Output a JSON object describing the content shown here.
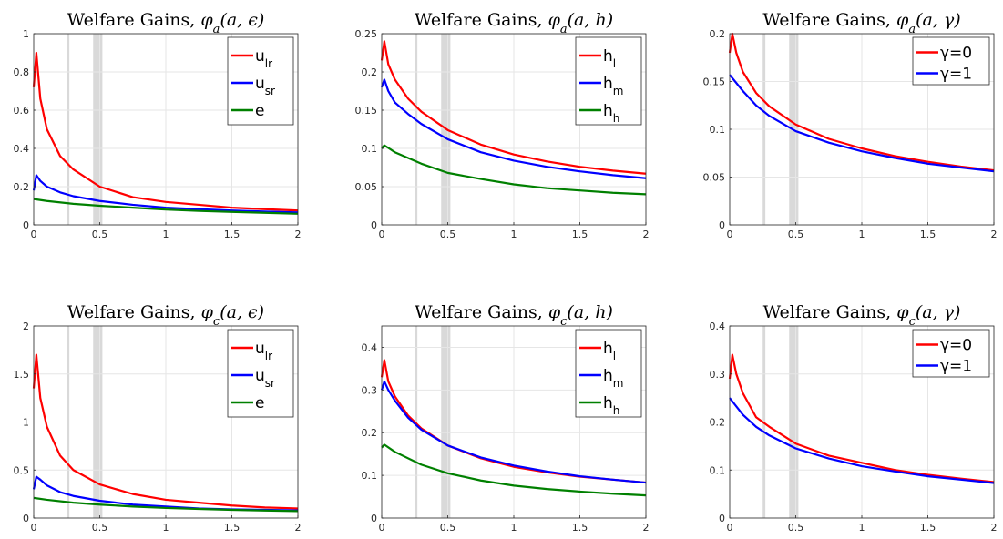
{
  "chart_data": [
    {
      "type": "line",
      "title_prefix": "Welfare Gains, ",
      "title_sym": "φ",
      "title_sub": "a",
      "title_args": "(a, ϵ)",
      "xlim": [
        0,
        2
      ],
      "ylim": [
        0,
        1
      ],
      "xticks": [
        0,
        0.5,
        1,
        1.5,
        2
      ],
      "xtick_labels": [
        "0",
        "0.5",
        "1",
        "1.5",
        "2"
      ],
      "yticks": [
        0,
        0.2,
        0.4,
        0.6,
        0.8,
        1
      ],
      "ytick_labels": [
        "0",
        "0.2",
        "0.4",
        "0.6",
        "0.8",
        "1"
      ],
      "grid": true,
      "legend_position": "top-right",
      "shaded_regions": [
        [
          0.25,
          0.27
        ],
        [
          0.45,
          0.52
        ]
      ],
      "series": [
        {
          "label": "u",
          "sub": "lr",
          "color": "#ff0000",
          "x": [
            0,
            0.02,
            0.05,
            0.1,
            0.2,
            0.3,
            0.5,
            0.75,
            1,
            1.25,
            1.5,
            1.75,
            2
          ],
          "y": [
            0.72,
            0.9,
            0.66,
            0.5,
            0.36,
            0.29,
            0.2,
            0.145,
            0.12,
            0.105,
            0.09,
            0.082,
            0.075
          ]
        },
        {
          "label": "u",
          "sub": "sr",
          "color": "#0000ff",
          "x": [
            0,
            0.02,
            0.05,
            0.1,
            0.2,
            0.3,
            0.5,
            0.75,
            1,
            1.25,
            1.5,
            1.75,
            2
          ],
          "y": [
            0.18,
            0.26,
            0.23,
            0.2,
            0.17,
            0.15,
            0.125,
            0.105,
            0.09,
            0.082,
            0.075,
            0.07,
            0.065
          ]
        },
        {
          "label": "e",
          "sub": "",
          "color": "#008000",
          "x": [
            0,
            0.1,
            0.3,
            0.5,
            0.75,
            1,
            1.25,
            1.5,
            1.75,
            2
          ],
          "y": [
            0.135,
            0.125,
            0.11,
            0.1,
            0.09,
            0.08,
            0.073,
            0.068,
            0.063,
            0.058
          ]
        }
      ]
    },
    {
      "type": "line",
      "title_prefix": "Welfare Gains, ",
      "title_sym": "φ",
      "title_sub": "a",
      "title_args": "(a, h)",
      "xlim": [
        0,
        2
      ],
      "ylim": [
        0,
        0.25
      ],
      "xticks": [
        0,
        0.5,
        1,
        1.5,
        2
      ],
      "xtick_labels": [
        "0",
        "0.5",
        "1",
        "1.5",
        "2"
      ],
      "yticks": [
        0,
        0.05,
        0.1,
        0.15,
        0.2,
        0.25
      ],
      "ytick_labels": [
        "0",
        "0.05",
        "0.1",
        "0.15",
        "0.2",
        "0.25"
      ],
      "grid": true,
      "legend_position": "top-right",
      "shaded_regions": [
        [
          0.25,
          0.27
        ],
        [
          0.45,
          0.52
        ]
      ],
      "series": [
        {
          "label": "h",
          "sub": "l",
          "color": "#ff0000",
          "x": [
            0,
            0.02,
            0.05,
            0.1,
            0.2,
            0.3,
            0.5,
            0.75,
            1,
            1.25,
            1.5,
            1.75,
            2
          ],
          "y": [
            0.215,
            0.24,
            0.21,
            0.19,
            0.165,
            0.148,
            0.124,
            0.105,
            0.092,
            0.083,
            0.076,
            0.071,
            0.067
          ]
        },
        {
          "label": "h",
          "sub": "m",
          "color": "#0000ff",
          "x": [
            0,
            0.02,
            0.05,
            0.1,
            0.2,
            0.3,
            0.5,
            0.75,
            1,
            1.25,
            1.5,
            1.75,
            2
          ],
          "y": [
            0.18,
            0.19,
            0.175,
            0.16,
            0.145,
            0.132,
            0.112,
            0.095,
            0.084,
            0.076,
            0.07,
            0.065,
            0.061
          ]
        },
        {
          "label": "h",
          "sub": "h",
          "color": "#008000",
          "x": [
            0,
            0.02,
            0.1,
            0.3,
            0.5,
            0.75,
            1,
            1.25,
            1.5,
            1.75,
            2
          ],
          "y": [
            0.1,
            0.104,
            0.095,
            0.08,
            0.068,
            0.06,
            0.053,
            0.048,
            0.045,
            0.042,
            0.04
          ]
        }
      ]
    },
    {
      "type": "line",
      "title_prefix": "Welfare Gains, ",
      "title_sym": "φ",
      "title_sub": "a",
      "title_args": "(a, γ)",
      "xlim": [
        0,
        2
      ],
      "ylim": [
        0,
        0.2
      ],
      "xticks": [
        0,
        0.5,
        1,
        1.5,
        2
      ],
      "xtick_labels": [
        "0",
        "0.5",
        "1",
        "1.5",
        "2"
      ],
      "yticks": [
        0,
        0.05,
        0.1,
        0.15,
        0.2
      ],
      "ytick_labels": [
        "0",
        "0.05",
        "0.1",
        "0.15",
        "0.2"
      ],
      "grid": true,
      "legend_position": "top-right",
      "shaded_regions": [
        [
          0.25,
          0.27
        ],
        [
          0.45,
          0.52
        ]
      ],
      "series": [
        {
          "label": "γ=0",
          "sub": "",
          "color": "#ff0000",
          "x": [
            0,
            0.02,
            0.05,
            0.1,
            0.2,
            0.3,
            0.5,
            0.75,
            1,
            1.25,
            1.5,
            1.75,
            2
          ],
          "y": [
            0.18,
            0.2,
            0.18,
            0.16,
            0.138,
            0.124,
            0.105,
            0.09,
            0.08,
            0.072,
            0.066,
            0.061,
            0.057
          ]
        },
        {
          "label": "γ=1",
          "sub": "",
          "color": "#0000ff",
          "x": [
            0,
            0.1,
            0.2,
            0.3,
            0.5,
            0.75,
            1,
            1.25,
            1.5,
            1.75,
            2
          ],
          "y": [
            0.157,
            0.14,
            0.125,
            0.114,
            0.098,
            0.086,
            0.077,
            0.07,
            0.064,
            0.06,
            0.056
          ]
        }
      ]
    },
    {
      "type": "line",
      "title_prefix": "Welfare Gains, ",
      "title_sym": "φ",
      "title_sub": "c",
      "title_args": "(a, ϵ)",
      "xlim": [
        0,
        2
      ],
      "ylim": [
        0,
        2
      ],
      "xticks": [
        0,
        0.5,
        1,
        1.5,
        2
      ],
      "xtick_labels": [
        "0",
        "0.5",
        "1",
        "1.5",
        "2"
      ],
      "yticks": [
        0,
        0.5,
        1,
        1.5,
        2
      ],
      "ytick_labels": [
        "0",
        "0.5",
        "1",
        "1.5",
        "2"
      ],
      "grid": true,
      "legend_position": "top-right",
      "shaded_regions": [
        [
          0.25,
          0.27
        ],
        [
          0.45,
          0.52
        ]
      ],
      "series": [
        {
          "label": "u",
          "sub": "lr",
          "color": "#ff0000",
          "x": [
            0,
            0.02,
            0.05,
            0.1,
            0.2,
            0.3,
            0.5,
            0.75,
            1,
            1.25,
            1.5,
            1.75,
            2
          ],
          "y": [
            1.35,
            1.7,
            1.25,
            0.95,
            0.65,
            0.5,
            0.35,
            0.25,
            0.19,
            0.16,
            0.13,
            0.11,
            0.1
          ]
        },
        {
          "label": "u",
          "sub": "sr",
          "color": "#0000ff",
          "x": [
            0,
            0.02,
            0.05,
            0.1,
            0.2,
            0.3,
            0.5,
            0.75,
            1,
            1.25,
            1.5,
            1.75,
            2
          ],
          "y": [
            0.3,
            0.43,
            0.4,
            0.34,
            0.27,
            0.23,
            0.18,
            0.14,
            0.12,
            0.1,
            0.09,
            0.085,
            0.08
          ]
        },
        {
          "label": "e",
          "sub": "",
          "color": "#008000",
          "x": [
            0,
            0.1,
            0.3,
            0.5,
            0.75,
            1,
            1.25,
            1.5,
            1.75,
            2
          ],
          "y": [
            0.21,
            0.19,
            0.16,
            0.14,
            0.12,
            0.105,
            0.095,
            0.085,
            0.078,
            0.072
          ]
        }
      ]
    },
    {
      "type": "line",
      "title_prefix": "Welfare Gains, ",
      "title_sym": "φ",
      "title_sub": "c",
      "title_args": "(a, h)",
      "xlim": [
        0,
        2
      ],
      "ylim": [
        0,
        0.45
      ],
      "xticks": [
        0,
        0.5,
        1,
        1.5,
        2
      ],
      "xtick_labels": [
        "0",
        "0.5",
        "1",
        "1.5",
        "2"
      ],
      "yticks": [
        0,
        0.1,
        0.2,
        0.3,
        0.4
      ],
      "ytick_labels": [
        "0",
        "0.1",
        "0.2",
        "0.3",
        "0.4"
      ],
      "grid": true,
      "legend_position": "top-right",
      "shaded_regions": [
        [
          0.25,
          0.27
        ],
        [
          0.45,
          0.52
        ]
      ],
      "series": [
        {
          "label": "h",
          "sub": "l",
          "color": "#ff0000",
          "x": [
            0,
            0.02,
            0.05,
            0.1,
            0.2,
            0.3,
            0.5,
            0.75,
            1,
            1.25,
            1.5,
            1.75,
            2
          ],
          "y": [
            0.33,
            0.37,
            0.32,
            0.285,
            0.24,
            0.21,
            0.17,
            0.14,
            0.12,
            0.107,
            0.097,
            0.09,
            0.083
          ]
        },
        {
          "label": "h",
          "sub": "m",
          "color": "#0000ff",
          "x": [
            0,
            0.02,
            0.05,
            0.1,
            0.2,
            0.3,
            0.5,
            0.75,
            1,
            1.25,
            1.5,
            1.75,
            2
          ],
          "y": [
            0.3,
            0.32,
            0.3,
            0.275,
            0.235,
            0.207,
            0.17,
            0.142,
            0.123,
            0.109,
            0.098,
            0.09,
            0.083
          ]
        },
        {
          "label": "h",
          "sub": "h",
          "color": "#008000",
          "x": [
            0,
            0.02,
            0.1,
            0.3,
            0.5,
            0.75,
            1,
            1.25,
            1.5,
            1.75,
            2
          ],
          "y": [
            0.165,
            0.172,
            0.155,
            0.125,
            0.105,
            0.088,
            0.076,
            0.068,
            0.062,
            0.057,
            0.053
          ]
        }
      ]
    },
    {
      "type": "line",
      "title_prefix": "Welfare Gains, ",
      "title_sym": "φ",
      "title_sub": "c",
      "title_args": "(a, γ)",
      "xlim": [
        0,
        2
      ],
      "ylim": [
        0,
        0.4
      ],
      "xticks": [
        0,
        0.5,
        1,
        1.5,
        2
      ],
      "xtick_labels": [
        "0",
        "0.5",
        "1",
        "1.5",
        "2"
      ],
      "yticks": [
        0,
        0.1,
        0.2,
        0.3,
        0.4
      ],
      "ytick_labels": [
        "0",
        "0.1",
        "0.2",
        "0.3",
        "0.4"
      ],
      "grid": true,
      "legend_position": "top-right",
      "shaded_regions": [
        [
          0.25,
          0.27
        ],
        [
          0.45,
          0.52
        ]
      ],
      "series": [
        {
          "label": "γ=0",
          "sub": "",
          "color": "#ff0000",
          "x": [
            0,
            0.02,
            0.05,
            0.1,
            0.2,
            0.3,
            0.5,
            0.75,
            1,
            1.25,
            1.5,
            1.75,
            2
          ],
          "y": [
            0.29,
            0.34,
            0.3,
            0.26,
            0.21,
            0.19,
            0.155,
            0.13,
            0.115,
            0.1,
            0.09,
            0.082,
            0.075
          ]
        },
        {
          "label": "γ=1",
          "sub": "",
          "color": "#0000ff",
          "x": [
            0,
            0.1,
            0.2,
            0.3,
            0.5,
            0.75,
            1,
            1.25,
            1.5,
            1.75,
            2
          ],
          "y": [
            0.25,
            0.215,
            0.19,
            0.172,
            0.145,
            0.124,
            0.108,
            0.097,
            0.087,
            0.08,
            0.073
          ]
        }
      ]
    }
  ]
}
